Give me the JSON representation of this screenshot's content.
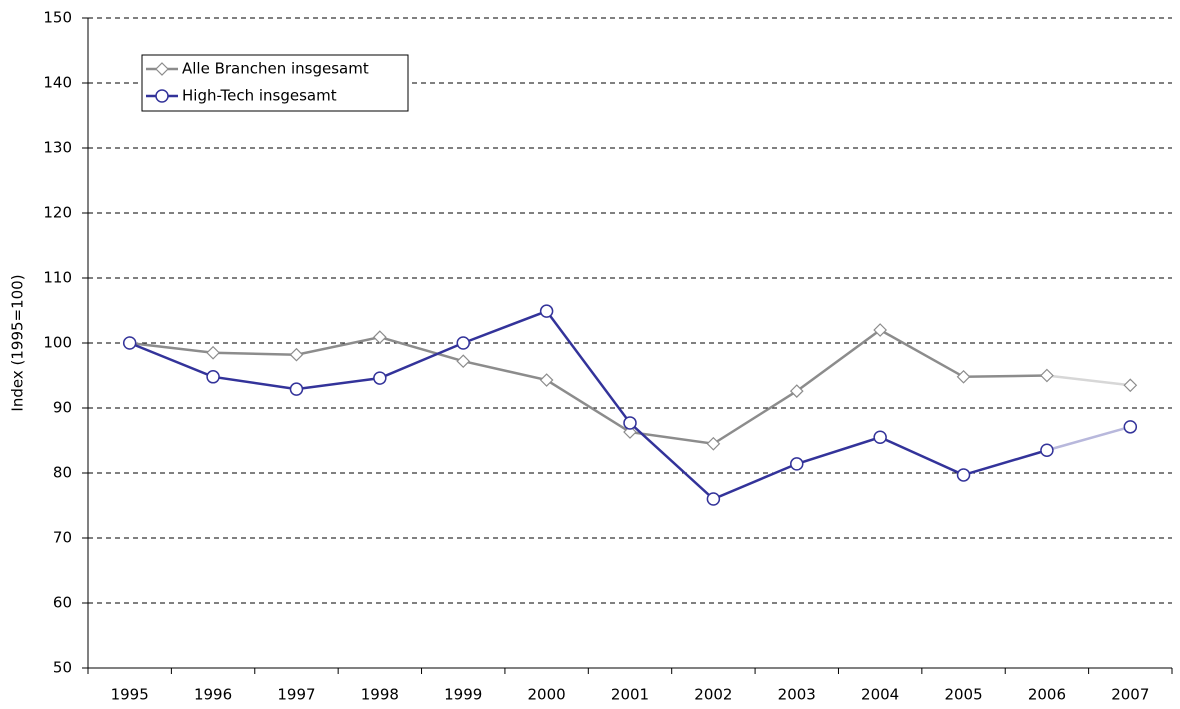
{
  "chart_data": {
    "type": "line",
    "y_label": "Index (1995=100)",
    "categories": [
      "1995",
      "1996",
      "1997",
      "1998",
      "1999",
      "2000",
      "2001",
      "2002",
      "2003",
      "2004",
      "2005",
      "2006",
      "2007"
    ],
    "series": [
      {
        "name": "Alle Branchen insgesamt",
        "color": "#8c8c8c",
        "marker": "diamond",
        "dashed_last_segment": true,
        "values": [
          100,
          98.5,
          98.2,
          100.9,
          97.2,
          94.3,
          86.3,
          84.5,
          92.6,
          102,
          94.8,
          95,
          93.5
        ]
      },
      {
        "name": "High-Tech insgesamt",
        "color": "#33339a",
        "marker": "circle",
        "dashed_last_segment": true,
        "values": [
          100,
          94.8,
          92.9,
          94.6,
          100,
          104.9,
          87.7,
          76,
          81.4,
          85.5,
          79.7,
          83.5,
          87.1
        ]
      }
    ],
    "ylim": [
      50,
      150
    ],
    "yticks": [
      50,
      60,
      70,
      80,
      90,
      100,
      110,
      120,
      130,
      140,
      150
    ],
    "grid": true,
    "legend": "upper left"
  }
}
